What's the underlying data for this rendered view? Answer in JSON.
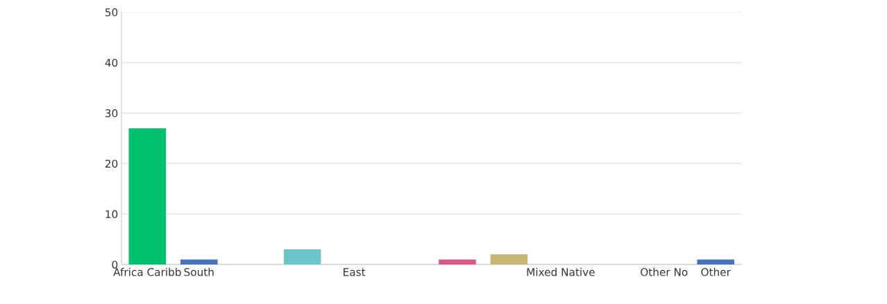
{
  "chart_data": {
    "type": "bar",
    "categories": [
      "Africa Caribb",
      "South",
      null,
      null,
      "East",
      null,
      null,
      null,
      "Mixed Native",
      null,
      "Other No",
      "Other"
    ],
    "values": [
      27,
      1,
      null,
      3,
      null,
      null,
      1,
      2,
      null,
      null,
      null,
      1
    ],
    "colors": [
      "#00c070",
      "#4a72b8",
      null,
      "#6cc6c9",
      null,
      null,
      "#d9588b",
      "#c8b677",
      null,
      null,
      null,
      "#4a72b8"
    ],
    "ylim": [
      0,
      50
    ],
    "yticks": [
      0,
      10,
      20,
      30,
      40,
      50
    ],
    "grid": "y",
    "legend": false
  }
}
